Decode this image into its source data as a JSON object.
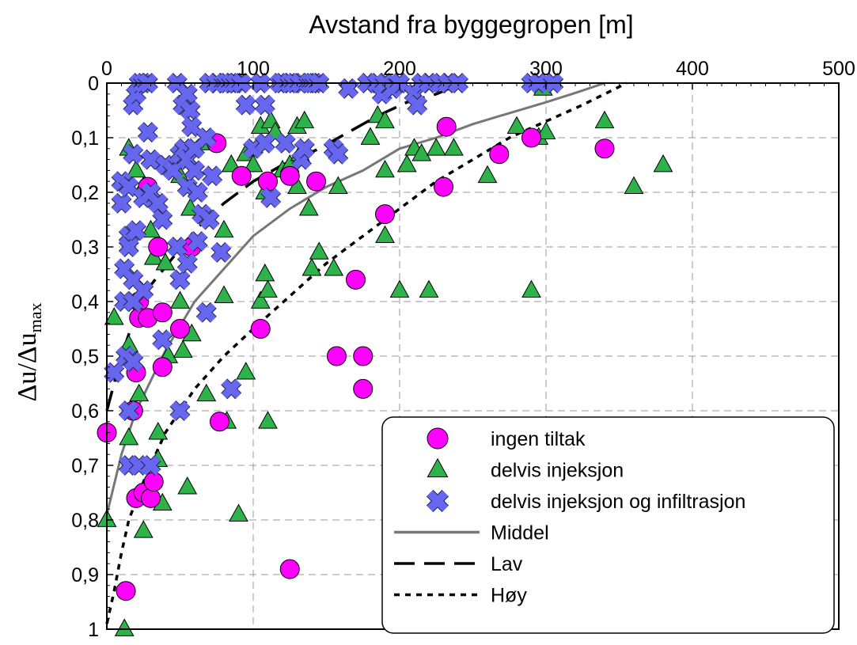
{
  "chart_data": {
    "type": "scatter",
    "xlabel": "Avstand fra byggegropen [m]",
    "ylabel": "Δu/Δu",
    "ylabel_subscript": "max",
    "xlim": [
      0,
      500
    ],
    "ylim": [
      0,
      1
    ],
    "x_axis_position": "top",
    "y_axis_inverted": true,
    "grid": true,
    "x_ticks": [
      0,
      100,
      200,
      300,
      400,
      500
    ],
    "x_tick_labels": [
      "0",
      "100",
      "200",
      "300",
      "400",
      "500"
    ],
    "y_ticks": [
      0,
      0.1,
      0.2,
      0.3,
      0.4,
      0.5,
      0.6,
      0.7,
      0.8,
      0.9,
      1
    ],
    "y_tick_labels": [
      "0",
      "0,1",
      "0,2",
      "0,3",
      "0,4",
      "0,5",
      "0,6",
      "0,7",
      "0,8",
      "0,9",
      "1"
    ],
    "legend_position": "bottom-right",
    "series": [
      {
        "name": "ingen tiltak",
        "kind": "scatter",
        "marker": "circle",
        "color": "#ff00ff",
        "points": [
          [
            0,
            0.64
          ],
          [
            13,
            0.93
          ],
          [
            18,
            0.6
          ],
          [
            20,
            0.53
          ],
          [
            22,
            0.4
          ],
          [
            22,
            0.43
          ],
          [
            20,
            0.76
          ],
          [
            25,
            0.75
          ],
          [
            28,
            0.19
          ],
          [
            28,
            0.43
          ],
          [
            30,
            0.76
          ],
          [
            32,
            0.73
          ],
          [
            35,
            0.3
          ],
          [
            38,
            0.42
          ],
          [
            38,
            0.52
          ],
          [
            50,
            0.45
          ],
          [
            58,
            0.3
          ],
          [
            75,
            0.11
          ],
          [
            77,
            0.62
          ],
          [
            92,
            0.17
          ],
          [
            105,
            0.45
          ],
          [
            110,
            0.18
          ],
          [
            125,
            0.17
          ],
          [
            125,
            0.89
          ],
          [
            143,
            0.18
          ],
          [
            157,
            0.5
          ],
          [
            170,
            0.36
          ],
          [
            175,
            0.5
          ],
          [
            175,
            0.56
          ],
          [
            190,
            0.24
          ],
          [
            230,
            0.19
          ],
          [
            232,
            0.08
          ],
          [
            268,
            0.13
          ],
          [
            290,
            0.1
          ],
          [
            340,
            0.12
          ]
        ]
      },
      {
        "name": "delvis injeksjon",
        "kind": "scatter",
        "marker": "triangle",
        "color": "#2db34a",
        "points": [
          [
            0,
            0.8
          ],
          [
            5,
            0.43
          ],
          [
            12,
            1.0
          ],
          [
            15,
            0.12
          ],
          [
            15,
            0.48
          ],
          [
            15,
            0.65
          ],
          [
            20,
            0.16
          ],
          [
            22,
            0.57
          ],
          [
            25,
            0.82
          ],
          [
            25,
            0.19
          ],
          [
            27,
            0.2
          ],
          [
            30,
            0.27
          ],
          [
            32,
            0.32
          ],
          [
            35,
            0.64
          ],
          [
            35,
            0.69
          ],
          [
            38,
            0.77
          ],
          [
            40,
            0.33
          ],
          [
            42,
            0.5
          ],
          [
            50,
            0.17
          ],
          [
            50,
            0.4
          ],
          [
            52,
            0.49
          ],
          [
            55,
            0.74
          ],
          [
            57,
            0.23
          ],
          [
            58,
            0.46
          ],
          [
            68,
            0.57
          ],
          [
            70,
            0.11
          ],
          [
            80,
            0.39
          ],
          [
            80,
            0.27
          ],
          [
            82,
            0.62
          ],
          [
            85,
            0.15
          ],
          [
            90,
            0.79
          ],
          [
            95,
            0.13
          ],
          [
            95,
            0.53
          ],
          [
            100,
            0.15
          ],
          [
            105,
            0.08
          ],
          [
            105,
            0.4
          ],
          [
            108,
            0.2
          ],
          [
            108,
            0.35
          ],
          [
            110,
            0.38
          ],
          [
            110,
            0.62
          ],
          [
            112,
            0.07
          ],
          [
            115,
            0.09
          ],
          [
            120,
            0.16
          ],
          [
            125,
            0.15
          ],
          [
            130,
            0.19
          ],
          [
            130,
            0.08
          ],
          [
            132,
            0.13
          ],
          [
            135,
            0.07
          ],
          [
            138,
            0.23
          ],
          [
            140,
            0.34
          ],
          [
            145,
            0.31
          ],
          [
            155,
            0.34
          ],
          [
            158,
            0.19
          ],
          [
            180,
            0.1
          ],
          [
            185,
            0.06
          ],
          [
            190,
            0.16
          ],
          [
            190,
            0.07
          ],
          [
            190,
            0.28
          ],
          [
            200,
            0.38
          ],
          [
            205,
            0.15
          ],
          [
            210,
            0.12
          ],
          [
            215,
            0.13
          ],
          [
            220,
            0.38
          ],
          [
            225,
            0.12
          ],
          [
            237,
            0.12
          ],
          [
            260,
            0.17
          ],
          [
            280,
            0.08
          ],
          [
            290,
            0.38
          ],
          [
            295,
            0.1
          ],
          [
            298,
            0.01
          ],
          [
            300,
            0.09
          ],
          [
            340,
            0.07
          ],
          [
            360,
            0.19
          ],
          [
            380,
            0.15
          ]
        ]
      },
      {
        "name": "delvis injeksjon og infiltrasjon",
        "kind": "scatter",
        "marker": "cross",
        "color": "#6666ee",
        "points": [
          [
            5,
            0.53
          ],
          [
            10,
            0.18
          ],
          [
            10,
            0.22
          ],
          [
            12,
            0.34
          ],
          [
            12,
            0.4
          ],
          [
            13,
            0.5
          ],
          [
            15,
            0.19
          ],
          [
            15,
            0.28
          ],
          [
            15,
            0.3
          ],
          [
            15,
            0.6
          ],
          [
            15,
            0.7
          ],
          [
            18,
            0.13
          ],
          [
            18,
            0.04
          ],
          [
            18,
            0.36
          ],
          [
            18,
            0.4
          ],
          [
            18,
            0.51
          ],
          [
            20,
            0.27
          ],
          [
            20,
            0.02
          ],
          [
            22,
            0.0
          ],
          [
            22,
            0.7
          ],
          [
            25,
            0.0
          ],
          [
            25,
            0.21
          ],
          [
            25,
            0.38
          ],
          [
            28,
            0.09
          ],
          [
            28,
            0.0
          ],
          [
            30,
            0.14
          ],
          [
            30,
            0.2
          ],
          [
            30,
            0.7
          ],
          [
            35,
            0.22
          ],
          [
            38,
            0.25
          ],
          [
            38,
            0.47
          ],
          [
            40,
            0.15
          ],
          [
            45,
            0.16
          ],
          [
            48,
            0.0
          ],
          [
            48,
            0.3
          ],
          [
            50,
            0.13
          ],
          [
            50,
            0.36
          ],
          [
            50,
            0.6
          ],
          [
            52,
            0.04
          ],
          [
            53,
            0.12
          ],
          [
            55,
            0.02
          ],
          [
            55,
            0.14
          ],
          [
            55,
            0.19
          ],
          [
            55,
            0.33
          ],
          [
            57,
            0.05
          ],
          [
            58,
            0.08
          ],
          [
            60,
            0.12
          ],
          [
            60,
            0.16
          ],
          [
            62,
            0.2
          ],
          [
            62,
            0.29
          ],
          [
            65,
            0.24
          ],
          [
            68,
            0.1
          ],
          [
            68,
            0.42
          ],
          [
            70,
            0.0
          ],
          [
            70,
            0.25
          ],
          [
            72,
            0.17
          ],
          [
            75,
            0.0
          ],
          [
            78,
            0.31
          ],
          [
            80,
            0.0
          ],
          [
            82,
            0.0
          ],
          [
            85,
            0.0
          ],
          [
            85,
            0.56
          ],
          [
            88,
            0.0
          ],
          [
            92,
            0.0
          ],
          [
            95,
            0.04
          ],
          [
            100,
            0.12
          ],
          [
            105,
            0.0
          ],
          [
            108,
            0.04
          ],
          [
            108,
            0.11
          ],
          [
            112,
            0.21
          ],
          [
            118,
            0.0
          ],
          [
            120,
            0.0
          ],
          [
            122,
            0.11
          ],
          [
            125,
            0.0
          ],
          [
            128,
            0.0
          ],
          [
            132,
            0.0
          ],
          [
            133,
            0.14
          ],
          [
            135,
            0.12
          ],
          [
            138,
            0.0
          ],
          [
            140,
            0.0
          ],
          [
            142,
            0.0
          ],
          [
            145,
            0.0
          ],
          [
            155,
            0.12
          ],
          [
            158,
            0.13
          ],
          [
            165,
            0.01
          ],
          [
            178,
            0.0
          ],
          [
            185,
            0.0
          ],
          [
            188,
            0.02
          ],
          [
            190,
            0.0
          ],
          [
            195,
            0.01
          ],
          [
            200,
            0.0
          ],
          [
            210,
            0.02
          ],
          [
            212,
            0.04
          ],
          [
            215,
            0.0
          ],
          [
            220,
            0.0
          ],
          [
            228,
            0.0
          ],
          [
            233,
            0.0
          ],
          [
            240,
            0.0
          ],
          [
            290,
            0.0
          ],
          [
            295,
            0.0
          ],
          [
            305,
            0.0
          ]
        ]
      },
      {
        "name": "Middel",
        "kind": "line",
        "style": "solid",
        "color": "#777777",
        "points": [
          [
            0,
            0.79
          ],
          [
            10,
            0.68
          ],
          [
            20,
            0.6
          ],
          [
            40,
            0.49
          ],
          [
            60,
            0.4
          ],
          [
            80,
            0.34
          ],
          [
            100,
            0.28
          ],
          [
            125,
            0.23
          ],
          [
            150,
            0.19
          ],
          [
            175,
            0.16
          ],
          [
            200,
            0.12
          ],
          [
            225,
            0.1
          ],
          [
            250,
            0.075
          ],
          [
            275,
            0.055
          ],
          [
            300,
            0.035
          ],
          [
            320,
            0.018
          ],
          [
            340,
            0.0
          ]
        ]
      },
      {
        "name": "Lav",
        "kind": "line",
        "style": "dashed",
        "color": "#000000",
        "points": [
          [
            0,
            0.6
          ],
          [
            10,
            0.5
          ],
          [
            20,
            0.42
          ],
          [
            30,
            0.37
          ],
          [
            45,
            0.32
          ],
          [
            60,
            0.27
          ],
          [
            80,
            0.22
          ],
          [
            100,
            0.18
          ],
          [
            120,
            0.15
          ],
          [
            145,
            0.12
          ],
          [
            165,
            0.09
          ],
          [
            185,
            0.06
          ],
          [
            205,
            0.035
          ],
          [
            225,
            0.02
          ],
          [
            243,
            0.0
          ]
        ]
      },
      {
        "name": "Høy",
        "kind": "line",
        "style": "dotted",
        "color": "#000000",
        "points": [
          [
            0,
            0.99
          ],
          [
            5,
            0.93
          ],
          [
            10,
            0.86
          ],
          [
            15,
            0.8
          ],
          [
            25,
            0.73
          ],
          [
            40,
            0.64
          ],
          [
            60,
            0.56
          ],
          [
            80,
            0.5
          ],
          [
            100,
            0.45
          ],
          [
            125,
            0.39
          ],
          [
            150,
            0.33
          ],
          [
            175,
            0.28
          ],
          [
            200,
            0.23
          ],
          [
            225,
            0.18
          ],
          [
            250,
            0.14
          ],
          [
            275,
            0.1
          ],
          [
            300,
            0.07
          ],
          [
            325,
            0.04
          ],
          [
            355,
            0.0
          ]
        ]
      }
    ]
  }
}
